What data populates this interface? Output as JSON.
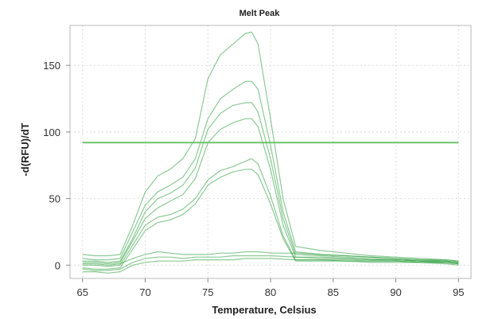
{
  "chart_data": {
    "type": "line",
    "title": "Melt Peak",
    "xlabel": "Temperature, Celsius",
    "ylabel": "-d(RFU)/dT",
    "xlim": [
      64,
      96
    ],
    "ylim": [
      -10,
      180
    ],
    "xticks": [
      65,
      70,
      75,
      80,
      85,
      90,
      95
    ],
    "yticks": [
      0,
      50,
      100,
      150
    ],
    "grid": true,
    "legend": "none",
    "threshold": 92,
    "colors": {
      "threshold": "#6cc46c",
      "curve": "#2e9e3e",
      "frame": "#b8b8b8"
    },
    "series": [
      {
        "x": [
          65,
          66,
          67,
          68,
          69,
          70,
          71,
          72,
          73,
          74,
          75,
          76,
          77,
          78,
          78.5,
          79,
          80,
          81,
          82,
          84,
          86,
          88,
          90,
          92,
          94,
          95
        ],
        "y": [
          8,
          7,
          7,
          8,
          30,
          55,
          67,
          72,
          80,
          95,
          140,
          158,
          166,
          174,
          175,
          166,
          110,
          50,
          14,
          11,
          9,
          7,
          6,
          5,
          4,
          3
        ]
      },
      {
        "x": [
          65,
          66,
          67,
          68,
          69,
          70,
          71,
          72,
          73,
          74,
          75,
          76,
          77,
          78,
          78.5,
          79,
          80,
          81,
          82,
          84,
          86,
          88,
          90,
          92,
          94,
          95
        ],
        "y": [
          5,
          4,
          4,
          5,
          25,
          45,
          55,
          60,
          66,
          80,
          110,
          125,
          132,
          138,
          138,
          132,
          90,
          40,
          10,
          8,
          7,
          6,
          5,
          4,
          3,
          2
        ]
      },
      {
        "x": [
          65,
          66,
          67,
          68,
          69,
          70,
          71,
          72,
          73,
          74,
          75,
          76,
          77,
          78,
          78.5,
          79,
          80,
          81,
          82,
          84,
          86,
          88,
          90,
          92,
          94,
          95
        ],
        "y": [
          3,
          3,
          2,
          3,
          20,
          40,
          50,
          54,
          60,
          73,
          102,
          114,
          120,
          122,
          122,
          115,
          80,
          35,
          8,
          7,
          6,
          5,
          4,
          3,
          3,
          2
        ]
      },
      {
        "x": [
          65,
          66,
          67,
          68,
          69,
          70,
          71,
          72,
          73,
          74,
          75,
          76,
          77,
          78,
          78.5,
          79,
          80,
          81,
          82,
          84,
          86,
          88,
          90,
          92,
          94,
          95
        ],
        "y": [
          2,
          2,
          1,
          2,
          18,
          35,
          43,
          48,
          53,
          65,
          92,
          102,
          107,
          110,
          110,
          104,
          72,
          30,
          6,
          5,
          5,
          4,
          4,
          3,
          2,
          1
        ]
      },
      {
        "x": [
          65,
          66,
          67,
          68,
          69,
          70,
          71,
          72,
          73,
          74,
          75,
          76,
          77,
          78,
          78.5,
          79,
          80,
          81,
          82,
          84,
          86,
          88,
          90,
          92,
          94,
          95
        ],
        "y": [
          0,
          0,
          -1,
          0,
          15,
          30,
          36,
          38,
          42,
          50,
          64,
          71,
          74,
          78,
          80,
          76,
          52,
          22,
          4,
          4,
          3,
          3,
          3,
          2,
          2,
          1
        ]
      },
      {
        "x": [
          65,
          66,
          67,
          68,
          69,
          70,
          71,
          72,
          73,
          74,
          75,
          76,
          77,
          78,
          78.5,
          79,
          80,
          81,
          82,
          84,
          86,
          88,
          90,
          92,
          94,
          95
        ],
        "y": [
          -2,
          -3,
          -3,
          -2,
          12,
          26,
          32,
          34,
          38,
          46,
          60,
          66,
          70,
          72,
          72,
          68,
          46,
          20,
          3,
          3,
          3,
          2,
          2,
          2,
          1,
          0
        ]
      },
      {
        "x": [
          65,
          66,
          67,
          68,
          69,
          70,
          71,
          72,
          73,
          74,
          75,
          76,
          77,
          78,
          79,
          80,
          82,
          84,
          86,
          88,
          90,
          92,
          94,
          95
        ],
        "y": [
          1,
          1,
          0,
          1,
          5,
          8,
          10,
          9,
          8,
          8,
          8,
          9,
          9,
          10,
          10,
          9,
          9,
          8,
          7,
          6,
          5,
          4,
          4,
          3
        ]
      },
      {
        "x": [
          65,
          66,
          67,
          68,
          69,
          70,
          71,
          72,
          73,
          74,
          75,
          76,
          77,
          78,
          79,
          80,
          82,
          84,
          86,
          88,
          90,
          92,
          94,
          95
        ],
        "y": [
          -3,
          -4,
          -4,
          -3,
          2,
          5,
          6,
          6,
          5,
          6,
          6,
          6,
          7,
          7,
          7,
          7,
          6,
          6,
          5,
          4,
          4,
          3,
          3,
          2
        ]
      },
      {
        "x": [
          65,
          66,
          67,
          68,
          69,
          70,
          71,
          72,
          73,
          74,
          75,
          76,
          77,
          78,
          79,
          80,
          82,
          84,
          86,
          88,
          90,
          92,
          94,
          95
        ],
        "y": [
          -5,
          -5,
          -6,
          -5,
          0,
          2,
          3,
          3,
          3,
          4,
          4,
          4,
          4,
          5,
          5,
          5,
          4,
          4,
          4,
          3,
          3,
          2,
          2,
          1
        ]
      }
    ]
  }
}
